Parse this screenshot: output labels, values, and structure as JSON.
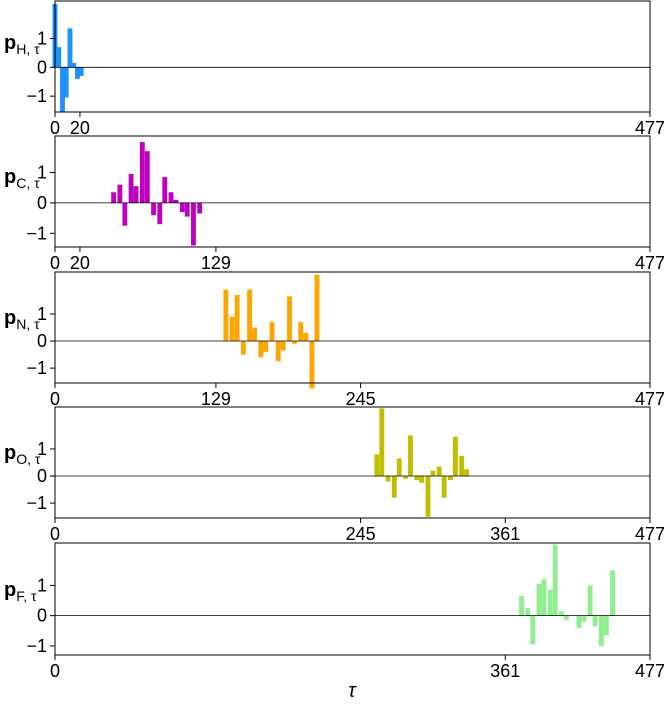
{
  "xlabel": "τ",
  "chart_data": [
    {
      "type": "bar",
      "ylabel_main": "p",
      "ylabel_sub": "H, τ",
      "color": "#1e90ff",
      "xlim": [
        0,
        477
      ],
      "ylim": [
        -1.55,
        2.3
      ],
      "xticks": [
        0,
        20,
        477
      ],
      "xtick_labels": [
        "0",
        "20",
        "477"
      ],
      "yticks": [
        -1,
        0,
        1
      ],
      "ytick_labels": [
        "−1",
        "0",
        "1"
      ],
      "bar_width": 3.9,
      "x": [
        0,
        3,
        6,
        9,
        12,
        15,
        18,
        21
      ],
      "values": [
        2.2,
        0.7,
        -1.55,
        -1.05,
        1.35,
        0.15,
        -0.4,
        -0.3
      ]
    },
    {
      "type": "bar",
      "ylabel_main": "p",
      "ylabel_sub": "C, τ",
      "color": "#c000c0",
      "xlim": [
        0,
        477
      ],
      "ylim": [
        -1.45,
        2.2
      ],
      "xticks": [
        0,
        20,
        129,
        477
      ],
      "xtick_labels": [
        "0",
        "20",
        "129",
        "477"
      ],
      "yticks": [
        -1,
        0,
        1
      ],
      "ytick_labels": [
        "−1",
        "0",
        "1"
      ],
      "bar_width": 3.9,
      "x": [
        47,
        52,
        56,
        61,
        65,
        70,
        74,
        79,
        84,
        88,
        93,
        97,
        102,
        106,
        111,
        116,
        120,
        125
      ],
      "values": [
        0.35,
        0.6,
        -0.75,
        0.95,
        0.55,
        2.0,
        1.7,
        -0.4,
        -0.7,
        0.85,
        0.35,
        0.1,
        -0.3,
        -0.45,
        -1.4,
        -0.35,
        0,
        0
      ]
    },
    {
      "type": "bar",
      "ylabel_main": "p",
      "ylabel_sub": "N, τ",
      "color": "#ffa500",
      "xlim": [
        0,
        477
      ],
      "ylim": [
        -1.55,
        2.55
      ],
      "xticks": [
        0,
        129,
        245,
        477
      ],
      "xtick_labels": [
        "0",
        "129",
        "245",
        "477"
      ],
      "yticks": [
        -1,
        0,
        1
      ],
      "ytick_labels": [
        "−1",
        "0",
        "1"
      ],
      "bar_width": 3.9,
      "x": [
        137,
        142,
        146,
        151,
        156,
        160,
        165,
        169,
        174,
        179,
        183,
        188,
        192,
        197,
        201,
        206,
        210,
        215
      ],
      "values": [
        1.9,
        0.9,
        1.7,
        -0.5,
        1.9,
        0.5,
        -0.6,
        -0.4,
        0.7,
        -0.75,
        -0.35,
        1.65,
        -0.1,
        0.7,
        0.3,
        -1.75,
        2.45,
        0
      ]
    },
    {
      "type": "bar",
      "ylabel_main": "p",
      "ylabel_sub": "O, τ",
      "color": "#bfbf00",
      "xlim": [
        0,
        477
      ],
      "ylim": [
        -1.55,
        2.55
      ],
      "xticks": [
        0,
        245,
        361,
        477
      ],
      "xtick_labels": [
        "0",
        "245",
        "361",
        "477"
      ],
      "yticks": [
        -1,
        0,
        1
      ],
      "ytick_labels": [
        "−1",
        "0",
        "1"
      ],
      "bar_width": 3.9,
      "x": [
        258,
        262,
        267,
        272,
        276,
        281,
        285,
        290,
        294,
        299,
        303,
        308,
        312,
        317,
        321,
        326,
        330,
        335,
        339,
        344
      ],
      "values": [
        0.8,
        2.5,
        -0.2,
        -0.8,
        0.65,
        -0.1,
        1.5,
        -0.15,
        -0.25,
        -1.5,
        0.2,
        0.35,
        -0.8,
        -0.15,
        1.45,
        0.75,
        0.25,
        0,
        0,
        0
      ]
    },
    {
      "type": "bar",
      "ylabel_main": "p",
      "ylabel_sub": "F, τ",
      "color": "#90ee90",
      "xlim": [
        0,
        477
      ],
      "ylim": [
        -1.3,
        2.4
      ],
      "xticks": [
        0,
        361,
        477
      ],
      "xtick_labels": [
        "0",
        "361",
        "477"
      ],
      "yticks": [
        -1,
        0,
        1
      ],
      "ytick_labels": [
        "−1",
        "0",
        "1"
      ],
      "bar_width": 3.9,
      "x": [
        374,
        379,
        383,
        388,
        392,
        397,
        401,
        406,
        410,
        415,
        420,
        424,
        429,
        433,
        438,
        442,
        447,
        451,
        456
      ],
      "values": [
        0.65,
        0.25,
        -0.95,
        1.05,
        1.2,
        0.85,
        2.35,
        0.15,
        -0.15,
        0,
        -0.4,
        -0.2,
        1.0,
        -0.35,
        -1.0,
        -0.65,
        1.5,
        0,
        0
      ]
    }
  ]
}
